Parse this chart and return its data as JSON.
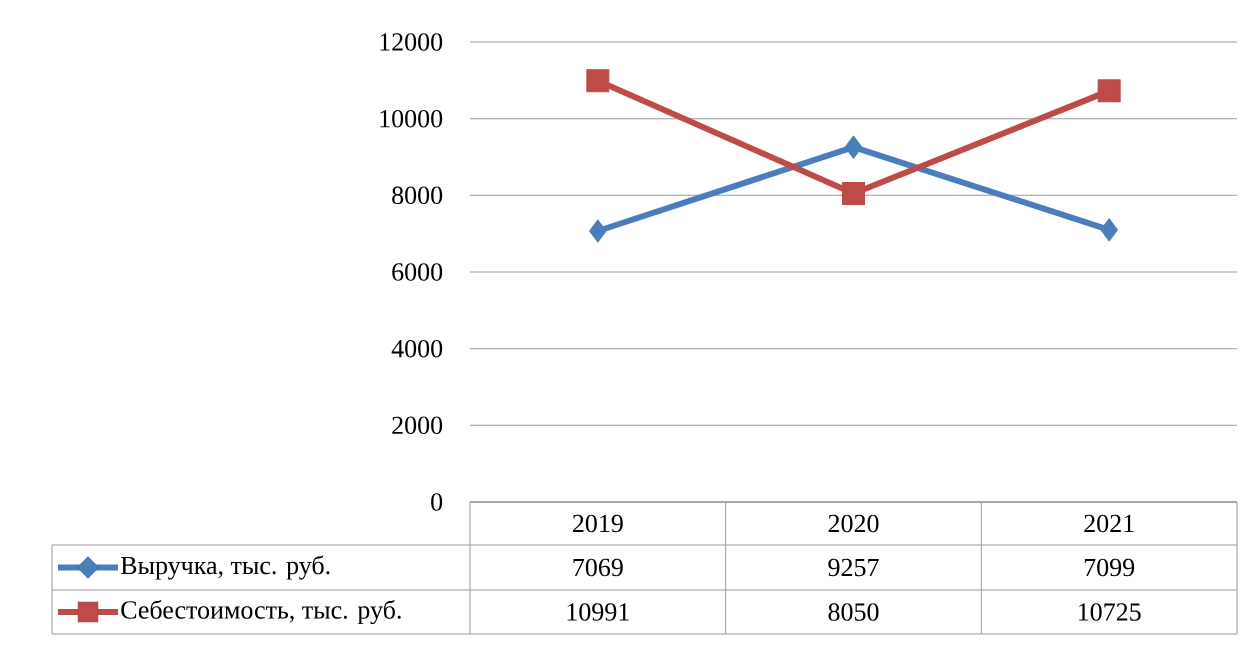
{
  "chart_data": {
    "type": "line",
    "categories": [
      "2019",
      "2020",
      "2021"
    ],
    "series": [
      {
        "name": "Выручка, тыс. руб.",
        "color": "#4a7ebb",
        "marker": "diamond",
        "values": [
          7069,
          9257,
          7099
        ]
      },
      {
        "name": "Себестоимость, тыс. руб.",
        "color": "#be4b48",
        "marker": "square",
        "values": [
          10991,
          8050,
          10725
        ]
      }
    ],
    "ylim": [
      0,
      12000
    ],
    "yticks": [
      0,
      2000,
      4000,
      6000,
      8000,
      10000,
      12000
    ],
    "grid": "y",
    "legend": "bottom",
    "data_labels": true
  }
}
